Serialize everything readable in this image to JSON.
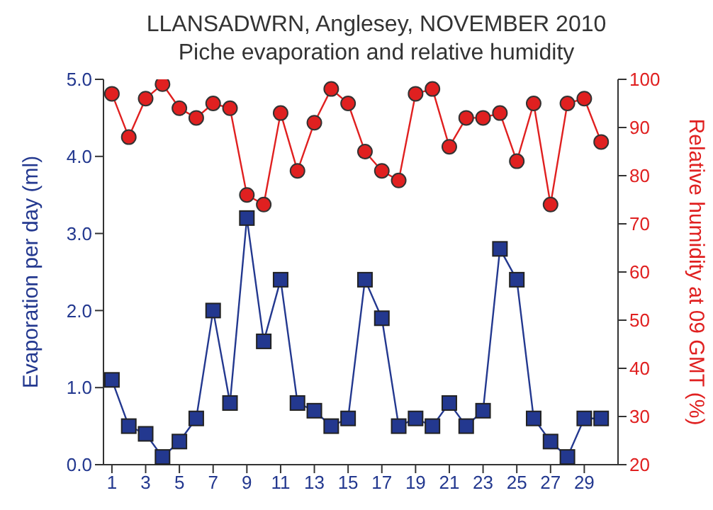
{
  "chart_data": {
    "type": "line",
    "title": "LLANSADWRN, Anglesey, NOVEMBER 2010",
    "subtitle": "Piche evaporation and relative humidity",
    "ylabel": "Evaporation per day (ml)",
    "y2label": "Relative humidity at 09 GMT (%)",
    "x": [
      1,
      2,
      3,
      4,
      5,
      6,
      7,
      8,
      9,
      10,
      11,
      12,
      13,
      14,
      15,
      16,
      17,
      18,
      19,
      20,
      21,
      22,
      23,
      24,
      25,
      26,
      27,
      28,
      29,
      30
    ],
    "xlim": [
      0.5,
      31
    ],
    "xticks": [
      1,
      3,
      5,
      7,
      9,
      11,
      13,
      15,
      17,
      19,
      21,
      23,
      25,
      27,
      29
    ],
    "ylim": [
      0,
      5
    ],
    "yticks": [
      {
        "value": 0,
        "label": "0.0"
      },
      {
        "value": 1,
        "label": "1.0"
      },
      {
        "value": 2,
        "label": "2.0"
      },
      {
        "value": 3,
        "label": "3.0"
      },
      {
        "value": 4,
        "label": "4.0"
      },
      {
        "value": 5,
        "label": "5.0"
      }
    ],
    "y2lim": [
      20,
      100
    ],
    "y2ticks": [
      20,
      30,
      40,
      50,
      60,
      70,
      80,
      90,
      100
    ],
    "series": [
      {
        "color": "#23388f",
        "marker": "square",
        "values": [
          1.1,
          0.5,
          0.4,
          0.1,
          0.3,
          0.6,
          2.0,
          0.8,
          3.2,
          1.6,
          2.4,
          0.8,
          0.7,
          0.5,
          0.6,
          2.4,
          1.9,
          0.5,
          0.6,
          0.5,
          0.8,
          0.5,
          0.7,
          2.8,
          2.4,
          0.6,
          0.3,
          0.1,
          0.6,
          0.6
        ]
      },
      {
        "color": "#e02020",
        "marker": "circle",
        "axis": "y2",
        "values": [
          97,
          88,
          96,
          99,
          94,
          92,
          95,
          94,
          76,
          74,
          93,
          81,
          91,
          98,
          95,
          85,
          81,
          79,
          97,
          98,
          86,
          92,
          92,
          93,
          83,
          95,
          74,
          95,
          96,
          87
        ]
      }
    ],
    "grid": false,
    "legend": false,
    "line_style": "solid"
  }
}
